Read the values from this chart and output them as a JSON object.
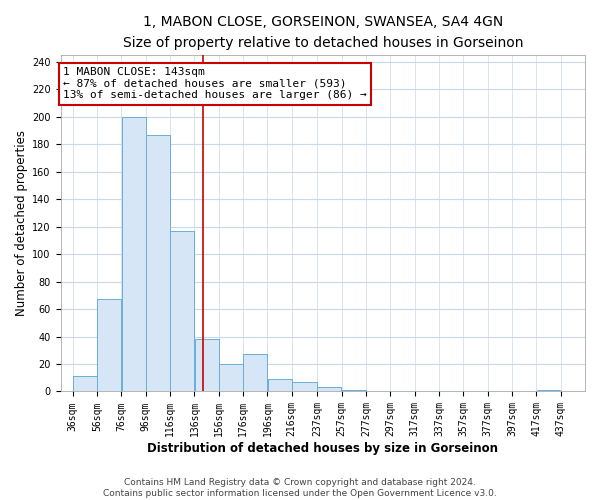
{
  "title": "1, MABON CLOSE, GORSEINON, SWANSEA, SA4 4GN",
  "subtitle": "Size of property relative to detached houses in Gorseinon",
  "xlabel": "Distribution of detached houses by size in Gorseinon",
  "ylabel": "Number of detached properties",
  "bar_heights": [
    11,
    67,
    200,
    187,
    117,
    38,
    20,
    27,
    9,
    7,
    3,
    1,
    0,
    0,
    0,
    0,
    1
  ],
  "bar_left_edges": [
    36,
    56,
    76,
    96,
    116,
    136,
    156,
    176,
    196,
    216,
    237,
    257,
    277,
    297,
    317,
    337,
    417
  ],
  "bar_widths": [
    20,
    20,
    20,
    20,
    20,
    20,
    20,
    20,
    20,
    21,
    20,
    20,
    20,
    20,
    20,
    20,
    20
  ],
  "x_tick_labels": [
    "36sqm",
    "56sqm",
    "76sqm",
    "96sqm",
    "116sqm",
    "136sqm",
    "156sqm",
    "176sqm",
    "196sqm",
    "216sqm",
    "237sqm",
    "257sqm",
    "277sqm",
    "297sqm",
    "317sqm",
    "337sqm",
    "357sqm",
    "377sqm",
    "397sqm",
    "417sqm",
    "437sqm"
  ],
  "x_tick_positions": [
    36,
    56,
    76,
    96,
    116,
    136,
    156,
    176,
    196,
    216,
    237,
    257,
    277,
    297,
    317,
    337,
    357,
    377,
    397,
    417,
    437
  ],
  "bar_color": "#d6e6f7",
  "bar_edge_color": "#6aaed6",
  "vline_x": 143,
  "vline_color": "#cc0000",
  "annotation_line1": "1 MABON CLOSE: 143sqm",
  "annotation_line2": "← 87% of detached houses are smaller (593)",
  "annotation_line3": "13% of semi-detached houses are larger (86) →",
  "ylim": [
    0,
    245
  ],
  "xlim": [
    26,
    457
  ],
  "footer_line1": "Contains HM Land Registry data © Crown copyright and database right 2024.",
  "footer_line2": "Contains public sector information licensed under the Open Government Licence v3.0.",
  "title_fontsize": 10,
  "subtitle_fontsize": 9,
  "axis_label_fontsize": 8.5,
  "tick_fontsize": 7,
  "annotation_fontsize": 8,
  "footer_fontsize": 6.5,
  "background_color": "#ffffff",
  "grid_color": "#c8d8ea",
  "annotation_box_color": "#ffffff",
  "annotation_box_edge_color": "#cc0000"
}
